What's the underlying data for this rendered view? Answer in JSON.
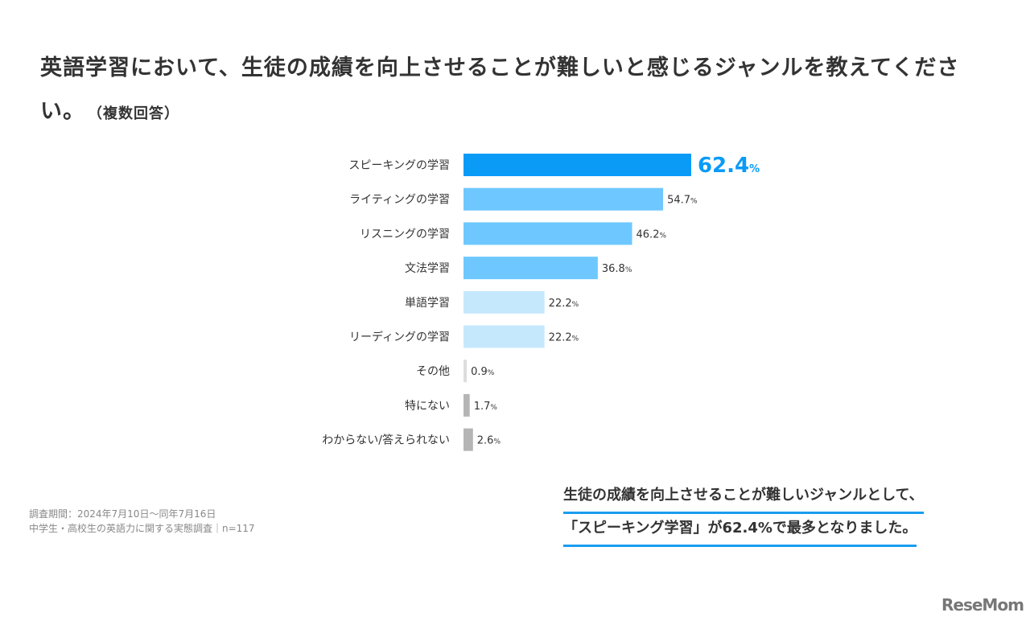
{
  "title": "英語学習において、生徒の成績を向上させることが難しいと感じるジャンルを教えてください。",
  "title_note": "（複数回答）",
  "source": {
    "period": "調査期間：2024年7月10日～同年7月16日",
    "survey": "中学生・高校生の英語力に関する実態調査｜n=117"
  },
  "note": {
    "line1": "生徒の成績を向上させることが難しいジャンルとして、",
    "line2": "「スピーキング学習」が62.4%で最多となりました。"
  },
  "logo": "ReseMom",
  "chart_data": {
    "type": "bar",
    "orientation": "horizontal",
    "unit": "%",
    "categories": [
      "スピーキングの学習",
      "ライティングの学習",
      "リスニングの学習",
      "文法学習",
      "単語学習",
      "リーディングの学習",
      "その他",
      "特にない",
      "わからない/答えられない"
    ],
    "values": [
      62.4,
      54.7,
      46.2,
      36.8,
      22.2,
      22.2,
      0.9,
      1.7,
      2.6
    ],
    "colors": [
      "#0a9bf7",
      "#6ec8ff",
      "#6ec8ff",
      "#6ec8ff",
      "#c6e8fd",
      "#c6e8fd",
      "#dddddd",
      "#b5b5b5",
      "#b5b5b5"
    ],
    "highlight_color": "#0a9bf7",
    "xlim": [
      0,
      100
    ],
    "grid": false
  }
}
